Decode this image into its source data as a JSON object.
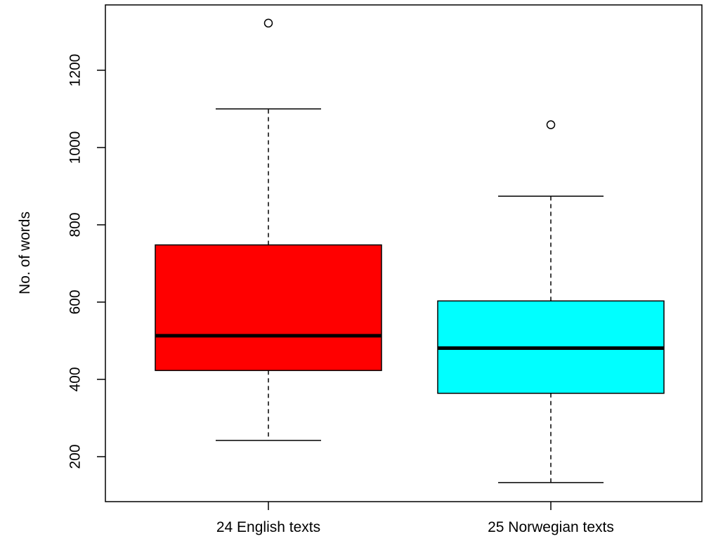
{
  "chart_data": {
    "type": "boxplot",
    "title": "",
    "xlabel": "",
    "ylabel": "No. of words",
    "ylim": [
      100,
      1340
    ],
    "y_ticks": [
      200,
      400,
      600,
      800,
      1000,
      1200
    ],
    "grid": false,
    "legend": "none",
    "categories": [
      "24 English texts",
      "25 Norwegian texts"
    ],
    "boxes": [
      {
        "label": "24 English texts",
        "color": "#ff0000",
        "whisker_low": 242,
        "q1": 423,
        "median": 513,
        "q3": 748,
        "whisker_high": 1100,
        "outliers": [
          1322
        ]
      },
      {
        "label": "25 Norwegian texts",
        "color": "#00ffff",
        "whisker_low": 133,
        "q1": 364,
        "median": 481,
        "q3": 603,
        "whisker_high": 874,
        "outliers": [
          1059
        ]
      }
    ]
  }
}
